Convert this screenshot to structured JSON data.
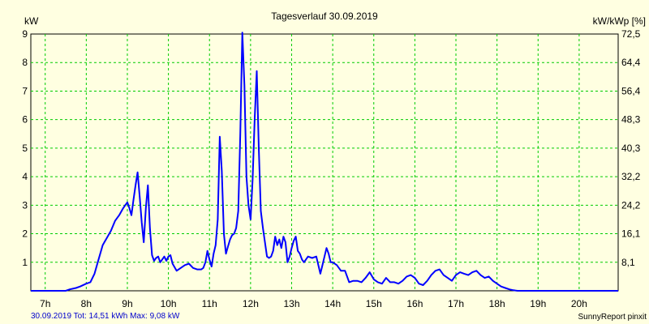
{
  "chart_data": {
    "type": "line",
    "title": "Tagesverlauf 30.09.2019",
    "ylabel_left": "kW",
    "ylabel_right": "kW/kWp [%]",
    "left_ticks": [
      "1",
      "2",
      "3",
      "4",
      "5",
      "6",
      "7",
      "8",
      "9"
    ],
    "right_ticks": [
      "8,1",
      "16,1",
      "24,2",
      "32,2",
      "40,3",
      "48,3",
      "56,4",
      "64,4",
      "72,5"
    ],
    "x_ticks": [
      "7h",
      "8h",
      "9h",
      "10h",
      "11h",
      "12h",
      "13h",
      "14h",
      "15h",
      "16h",
      "17h",
      "18h",
      "19h",
      "20h"
    ],
    "xlim": [
      6.65,
      20.95
    ],
    "ylim": [
      0,
      9
    ],
    "grid": true,
    "line_color": "#0000ff",
    "grid_color": "#00cc00",
    "series": [
      {
        "x": [
          6.65,
          7.5,
          7.6,
          7.75,
          7.85,
          8.0,
          8.1,
          8.2,
          8.3,
          8.4,
          8.5,
          8.6,
          8.7,
          8.8,
          8.9,
          8.95,
          9.0,
          9.05,
          9.1,
          9.15,
          9.2,
          9.25,
          9.3,
          9.35,
          9.4,
          9.45,
          9.5,
          9.55,
          9.6,
          9.65,
          9.7,
          9.75,
          9.8,
          9.85,
          9.9,
          9.95,
          10.0,
          10.05,
          10.1,
          10.2,
          10.3,
          10.4,
          10.5,
          10.6,
          10.7,
          10.8,
          10.85,
          10.9,
          10.95,
          11.0,
          11.05,
          11.1,
          11.15,
          11.2,
          11.25,
          11.3,
          11.35,
          11.4,
          11.45,
          11.5,
          11.55,
          11.6,
          11.65,
          11.7,
          11.75,
          11.8,
          11.85,
          11.9,
          11.95,
          12.0,
          12.05,
          12.1,
          12.15,
          12.2,
          12.25,
          12.3,
          12.35,
          12.4,
          12.45,
          12.5,
          12.55,
          12.6,
          12.65,
          12.7,
          12.75,
          12.8,
          12.85,
          12.9,
          12.95,
          13.0,
          13.05,
          13.1,
          13.15,
          13.2,
          13.25,
          13.3,
          13.4,
          13.5,
          13.6,
          13.7,
          13.75,
          13.8,
          13.85,
          13.9,
          13.95,
          14.0,
          14.1,
          14.2,
          14.3,
          14.4,
          14.5,
          14.6,
          14.7,
          14.8,
          14.9,
          15.0,
          15.1,
          15.2,
          15.3,
          15.4,
          15.5,
          15.6,
          15.7,
          15.8,
          15.9,
          16.0,
          16.1,
          16.2,
          16.3,
          16.4,
          16.5,
          16.6,
          16.7,
          16.8,
          16.9,
          17.0,
          17.1,
          17.2,
          17.3,
          17.4,
          17.5,
          17.6,
          17.7,
          17.8,
          17.9,
          18.0,
          18.1,
          18.2,
          18.3,
          18.4,
          18.5,
          18.6,
          18.7,
          20.95
        ],
        "y": [
          0,
          0,
          0.05,
          0.1,
          0.15,
          0.25,
          0.3,
          0.6,
          1.1,
          1.6,
          1.85,
          2.1,
          2.45,
          2.65,
          2.9,
          3.0,
          3.1,
          2.9,
          2.65,
          3.2,
          3.7,
          4.15,
          3.3,
          2.4,
          1.7,
          2.9,
          3.7,
          2.2,
          1.25,
          1.05,
          1.15,
          1.2,
          1.0,
          1.1,
          1.2,
          1.05,
          1.2,
          1.25,
          0.95,
          0.7,
          0.8,
          0.9,
          0.95,
          0.8,
          0.75,
          0.75,
          0.8,
          1.0,
          1.4,
          1.1,
          0.85,
          1.3,
          1.6,
          2.5,
          5.4,
          4.2,
          2.0,
          1.3,
          1.55,
          1.8,
          1.95,
          2.0,
          2.2,
          2.8,
          5.5,
          9.05,
          7.2,
          4.0,
          3.0,
          2.5,
          3.9,
          6.0,
          7.7,
          5.0,
          2.8,
          2.2,
          1.7,
          1.2,
          1.15,
          1.2,
          1.4,
          1.9,
          1.6,
          1.8,
          1.5,
          1.9,
          1.7,
          1.0,
          1.2,
          1.5,
          1.75,
          1.9,
          1.4,
          1.3,
          1.1,
          1.0,
          1.2,
          1.15,
          1.2,
          0.6,
          0.9,
          1.2,
          1.5,
          1.3,
          1.0,
          1.0,
          0.9,
          0.7,
          0.7,
          0.3,
          0.35,
          0.35,
          0.3,
          0.45,
          0.65,
          0.4,
          0.3,
          0.25,
          0.45,
          0.3,
          0.3,
          0.25,
          0.35,
          0.5,
          0.55,
          0.45,
          0.25,
          0.2,
          0.35,
          0.55,
          0.7,
          0.75,
          0.55,
          0.45,
          0.35,
          0.55,
          0.65,
          0.6,
          0.55,
          0.65,
          0.7,
          0.55,
          0.45,
          0.5,
          0.35,
          0.25,
          0.15,
          0.1,
          0.05,
          0.02,
          0,
          0,
          0,
          0
        ]
      }
    ]
  },
  "footer": {
    "left": "30.09.2019 Tot: 14,51 kWh Max: 9,08 kW",
    "right": "SunnyReport pinxit"
  }
}
